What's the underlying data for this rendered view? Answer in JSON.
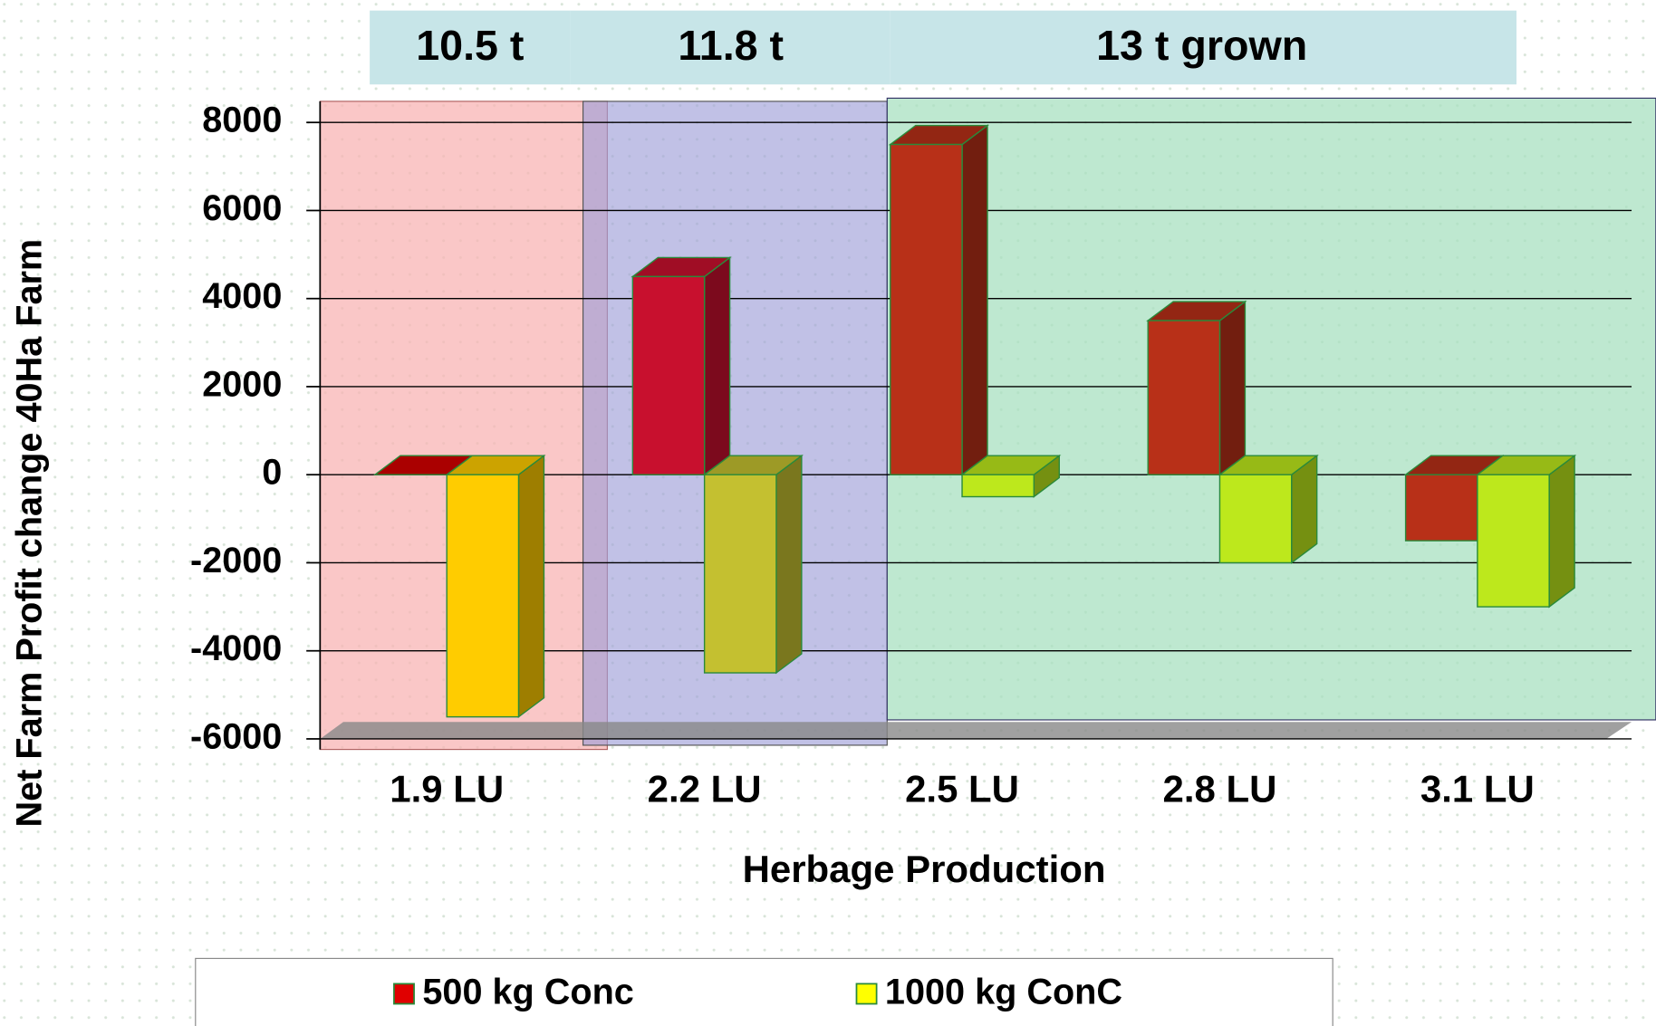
{
  "chart_data": {
    "type": "bar3d",
    "x_label": "Herbage Production",
    "y_label": "Net Farm Profit change 40Ha Farm",
    "annotations": [
      "10.5 t",
      "11.8 t",
      "13 t grown"
    ],
    "categories": [
      "1.9 LU",
      "2.2 LU",
      "2.5 LU",
      "2.8 LU",
      "3.1 LU"
    ],
    "series": [
      {
        "name": "500 kg Conc",
        "color": "#e00000",
        "colors": [
          "#d40000",
          "#c8102e",
          "#b83018",
          "#b83018",
          "#b83018"
        ],
        "values": [
          0,
          4500,
          7500,
          3500,
          -1500
        ]
      },
      {
        "name": "1000 kg ConC",
        "color": "#ffff00",
        "colors": [
          "#ffcc00",
          "#c4c030",
          "#bde81c",
          "#bde81c",
          "#bde81c"
        ],
        "values": [
          -5500,
          -4500,
          -500,
          -2000,
          -3000
        ]
      }
    ],
    "ylim": [
      -6000,
      8000
    ],
    "yticks": [
      -6000,
      -4000,
      -2000,
      0,
      2000,
      4000,
      6000,
      8000
    ],
    "grid": true,
    "legend": "bottom"
  }
}
